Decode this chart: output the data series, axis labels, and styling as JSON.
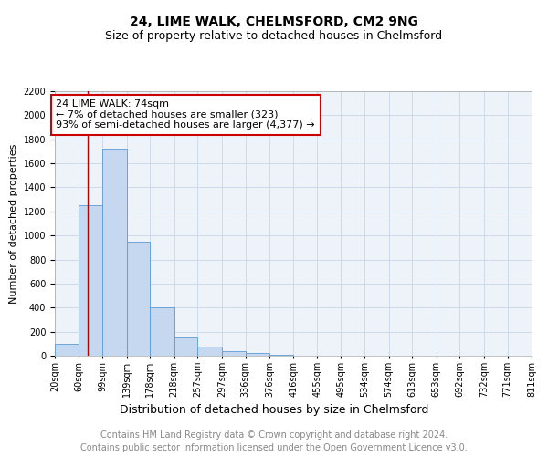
{
  "title": "24, LIME WALK, CHELMSFORD, CM2 9NG",
  "subtitle": "Size of property relative to detached houses in Chelmsford",
  "xlabel": "Distribution of detached houses by size in Chelmsford",
  "ylabel": "Number of detached properties",
  "bar_values": [
    100,
    1255,
    1725,
    950,
    400,
    150,
    75,
    40,
    20,
    10,
    0,
    0,
    0,
    0,
    0,
    0,
    0,
    0,
    0,
    0
  ],
  "bar_left_edges": [
    20,
    60,
    99,
    139,
    178,
    218,
    257,
    297,
    336,
    376,
    416,
    455,
    495,
    534,
    574,
    613,
    653,
    692,
    732,
    771
  ],
  "bar_widths": [
    40,
    39,
    40,
    39,
    40,
    39,
    40,
    39,
    40,
    40,
    39,
    40,
    39,
    40,
    39,
    40,
    39,
    40,
    39,
    40
  ],
  "bar_color": "#c5d8f0",
  "bar_edge_color": "#5b9bd5",
  "tick_labels": [
    "20sqm",
    "60sqm",
    "99sqm",
    "139sqm",
    "178sqm",
    "218sqm",
    "257sqm",
    "297sqm",
    "336sqm",
    "376sqm",
    "416sqm",
    "455sqm",
    "495sqm",
    "534sqm",
    "574sqm",
    "613sqm",
    "653sqm",
    "692sqm",
    "732sqm",
    "771sqm",
    "811sqm"
  ],
  "tick_positions": [
    20,
    60,
    99,
    139,
    178,
    218,
    257,
    297,
    336,
    376,
    416,
    455,
    495,
    534,
    574,
    613,
    653,
    692,
    732,
    771,
    811
  ],
  "ylim": [
    0,
    2200
  ],
  "xlim": [
    20,
    811
  ],
  "property_x": 74,
  "red_line_color": "#bb0000",
  "annotation_line1": "24 LIME WALK: 74sqm",
  "annotation_line2": "← 7% of detached houses are smaller (323)",
  "annotation_line3": "93% of semi-detached houses are larger (4,377) →",
  "annotation_box_color": "#cc0000",
  "grid_color": "#c8d4e8",
  "bg_color": "#eef3fa",
  "footnote1": "Contains HM Land Registry data © Crown copyright and database right 2024.",
  "footnote2": "Contains public sector information licensed under the Open Government Licence v3.0.",
  "title_fontsize": 10,
  "subtitle_fontsize": 9,
  "xlabel_fontsize": 9,
  "ylabel_fontsize": 8,
  "tick_fontsize": 7,
  "annotation_fontsize": 8,
  "footnote_fontsize": 7
}
